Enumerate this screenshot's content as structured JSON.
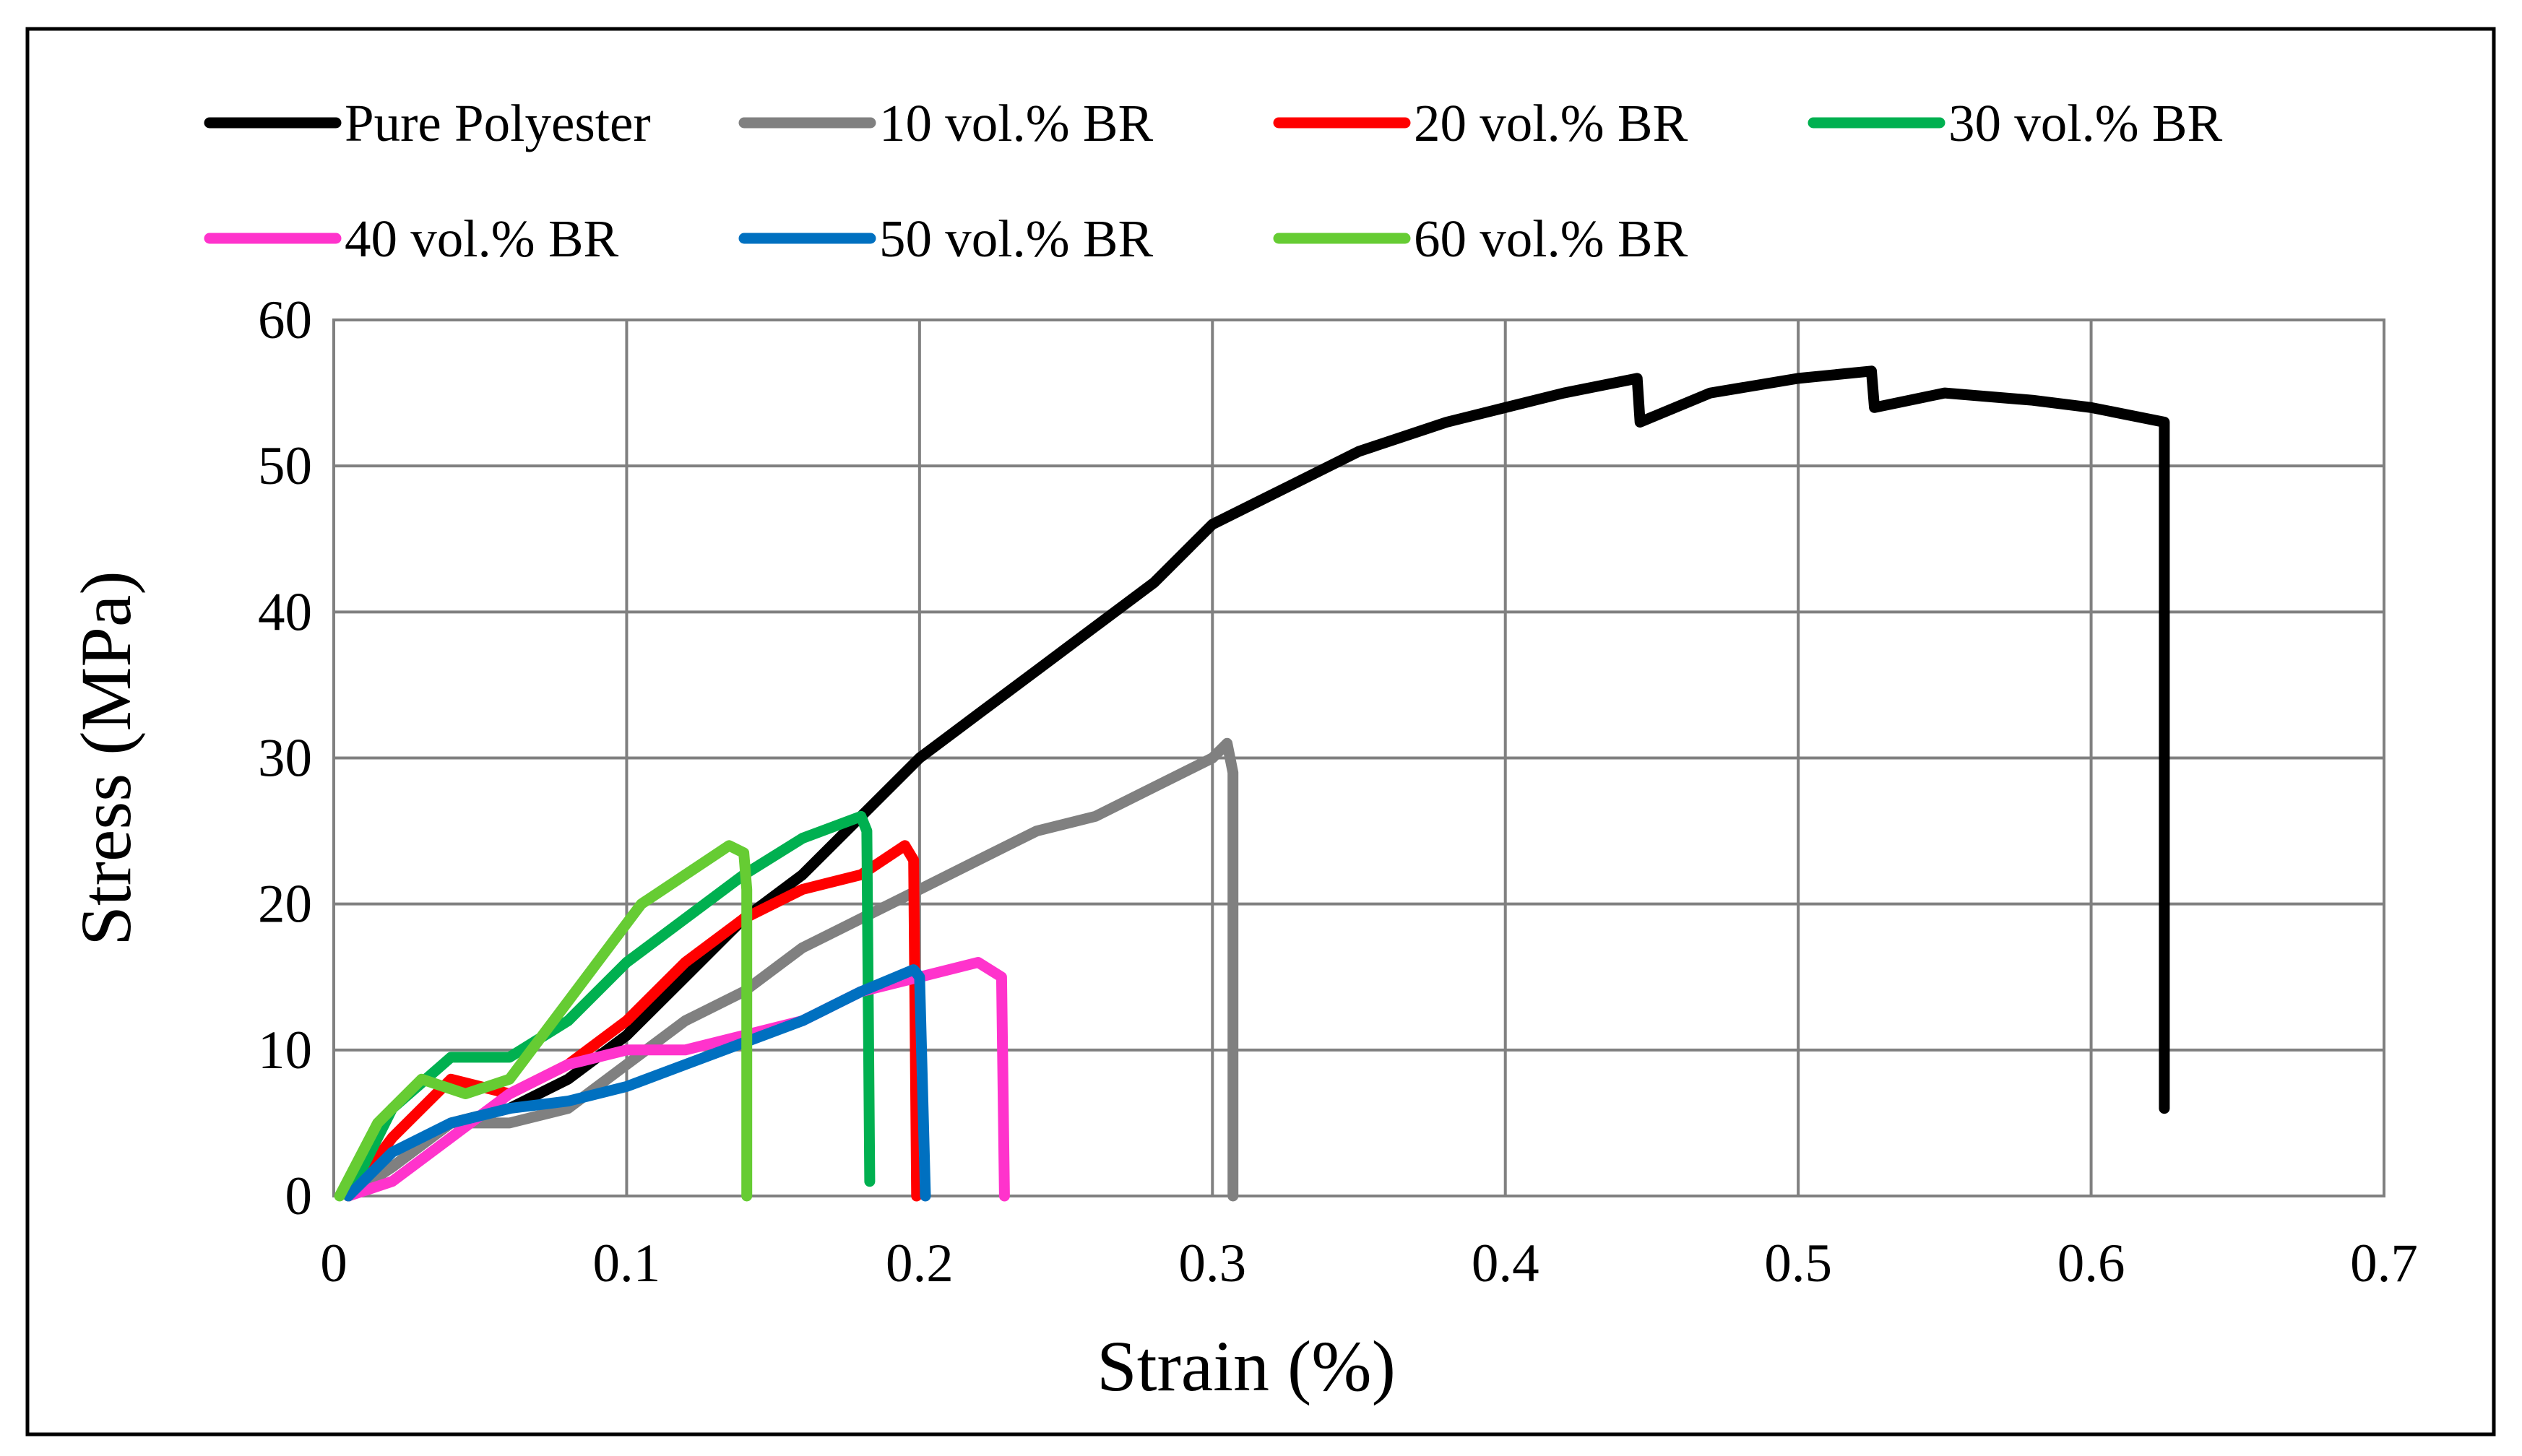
{
  "chart_data": {
    "type": "line",
    "title": "",
    "xlabel": "Strain (%)",
    "ylabel": "Stress (MPa)",
    "xlim": [
      0,
      0.7
    ],
    "ylim": [
      0,
      60
    ],
    "xticks": [
      0,
      0.1,
      0.2,
      0.3,
      0.4,
      0.5,
      0.6,
      0.7
    ],
    "xtick_labels": [
      "0",
      "0.1",
      "0.2",
      "0.3",
      "0.4",
      "0.5",
      "0.6",
      "0.7"
    ],
    "yticks": [
      0,
      10,
      20,
      30,
      40,
      50,
      60
    ],
    "ytick_labels": [
      "0",
      "10",
      "20",
      "30",
      "40",
      "50",
      "60"
    ],
    "grid": true,
    "legend_position": "top",
    "series": [
      {
        "name": "Pure Polyester",
        "color": "#000000",
        "x": [
          0.005,
          0.02,
          0.04,
          0.06,
          0.08,
          0.1,
          0.12,
          0.14,
          0.16,
          0.18,
          0.2,
          0.22,
          0.24,
          0.26,
          0.28,
          0.3,
          0.32,
          0.35,
          0.38,
          0.4,
          0.42,
          0.445,
          0.446,
          0.47,
          0.5,
          0.525,
          0.526,
          0.55,
          0.58,
          0.6,
          0.625,
          0.625
        ],
        "y": [
          0,
          2,
          5,
          6,
          8,
          11,
          15,
          19,
          22,
          26,
          30,
          33,
          36,
          39,
          42,
          46,
          48,
          51,
          53,
          54,
          55,
          56,
          53,
          55,
          56,
          56.5,
          54,
          55,
          54.5,
          54,
          53,
          6
        ]
      },
      {
        "name": "10 vol.% BR",
        "color": "#808080",
        "x": [
          0.005,
          0.02,
          0.04,
          0.06,
          0.08,
          0.1,
          0.12,
          0.14,
          0.16,
          0.18,
          0.2,
          0.22,
          0.24,
          0.26,
          0.28,
          0.3,
          0.305,
          0.307,
          0.307
        ],
        "y": [
          0,
          2,
          5,
          5,
          6,
          9,
          12,
          14,
          17,
          19,
          21,
          23,
          25,
          26,
          28,
          30,
          31,
          29,
          0
        ]
      },
      {
        "name": "20 vol.% BR",
        "color": "#ff0000",
        "x": [
          0.005,
          0.02,
          0.04,
          0.06,
          0.08,
          0.1,
          0.12,
          0.14,
          0.16,
          0.18,
          0.195,
          0.198,
          0.199
        ],
        "y": [
          0,
          4,
          8,
          7,
          9,
          12,
          16,
          19,
          21,
          22,
          24,
          23,
          0
        ]
      },
      {
        "name": "30 vol.% BR",
        "color": "#00b050",
        "x": [
          0.005,
          0.02,
          0.04,
          0.06,
          0.08,
          0.1,
          0.12,
          0.14,
          0.16,
          0.18,
          0.182,
          0.183
        ],
        "y": [
          0,
          6,
          9.5,
          9.5,
          12,
          16,
          19,
          22,
          24.5,
          26,
          25,
          1
        ]
      },
      {
        "name": "40 vol.% BR",
        "color": "#ff33cc",
        "x": [
          0.005,
          0.02,
          0.04,
          0.06,
          0.08,
          0.1,
          0.12,
          0.14,
          0.16,
          0.18,
          0.2,
          0.22,
          0.228,
          0.229
        ],
        "y": [
          0,
          1,
          4,
          7,
          9,
          10,
          10,
          11,
          12,
          14,
          15,
          16,
          15,
          0
        ]
      },
      {
        "name": "50 vol.% BR",
        "color": "#0070c0",
        "x": [
          0.005,
          0.02,
          0.04,
          0.06,
          0.08,
          0.1,
          0.12,
          0.14,
          0.16,
          0.18,
          0.198,
          0.2,
          0.202
        ],
        "y": [
          0,
          3,
          5,
          6,
          6.5,
          7.5,
          9,
          10.5,
          12,
          14,
          15.5,
          15,
          0
        ]
      },
      {
        "name": "60 vol.% BR",
        "color": "#66cc33",
        "x": [
          0.002,
          0.015,
          0.03,
          0.045,
          0.06,
          0.075,
          0.09,
          0.105,
          0.12,
          0.135,
          0.14,
          0.141,
          0.141
        ],
        "y": [
          0,
          5,
          8,
          7,
          8,
          12,
          16,
          20,
          22,
          24,
          23.5,
          21,
          0
        ]
      }
    ]
  }
}
